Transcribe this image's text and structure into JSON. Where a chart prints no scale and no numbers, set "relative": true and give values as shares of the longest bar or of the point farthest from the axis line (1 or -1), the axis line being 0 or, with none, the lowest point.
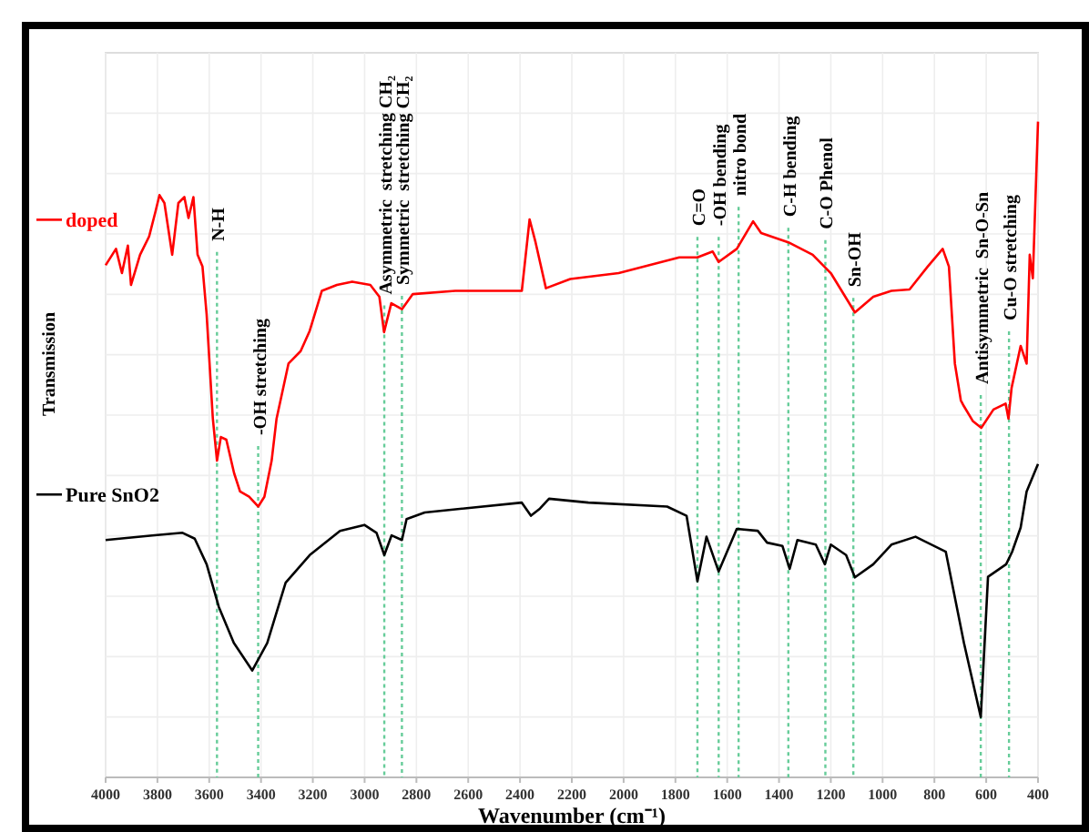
{
  "chart_data": {
    "type": "line",
    "relative": true,
    "xlabel": "Wavenumber (cm⁻¹)",
    "ylabel": "Transmission",
    "xlim": [
      4000,
      400
    ],
    "xticks": [
      4000,
      3800,
      3600,
      3400,
      3200,
      3000,
      2800,
      2600,
      2400,
      2200,
      2000,
      1800,
      1600,
      1400,
      1200,
      1000,
      800,
      600,
      400
    ],
    "tick_labels": "x",
    "grid": true,
    "line_style": "solid",
    "legend": "left",
    "series": [
      {
        "name": "doped",
        "color": "#ff0000",
        "x": [
          4000,
          3960,
          3937,
          3914,
          3902,
          3867,
          3832,
          3808,
          3792,
          3773,
          3743,
          3719,
          3696,
          3680,
          3661,
          3645,
          3626,
          3610,
          3586,
          3570,
          3555,
          3534,
          3504,
          3481,
          3446,
          3411,
          3387,
          3359,
          3340,
          3294,
          3247,
          3212,
          3165,
          3107,
          3048,
          2978,
          2943,
          2925,
          2897,
          2856,
          2814,
          2650,
          2393,
          2363,
          2340,
          2300,
          2206,
          2019,
          1785,
          1715,
          1656,
          1633,
          1563,
          1500,
          1469,
          1364,
          1270,
          1200,
          1107,
          1036,
          966,
          896,
          826,
          768,
          744,
          721,
          698,
          686,
          651,
          619,
          572,
          525,
          514,
          502,
          467,
          444,
          432,
          420,
          400
        ],
        "values": [
          0.781,
          0.806,
          0.769,
          0.811,
          0.751,
          0.797,
          0.825,
          0.862,
          0.888,
          0.876,
          0.797,
          0.876,
          0.885,
          0.853,
          0.885,
          0.797,
          0.779,
          0.706,
          0.547,
          0.483,
          0.519,
          0.515,
          0.464,
          0.436,
          0.428,
          0.413,
          0.428,
          0.483,
          0.547,
          0.631,
          0.65,
          0.681,
          0.742,
          0.751,
          0.756,
          0.751,
          0.733,
          0.679,
          0.723,
          0.714,
          0.737,
          0.742,
          0.742,
          0.851,
          0.816,
          0.746,
          0.76,
          0.769,
          0.793,
          0.793,
          0.802,
          0.786,
          0.806,
          0.848,
          0.83,
          0.816,
          0.797,
          0.769,
          0.709,
          0.733,
          0.742,
          0.744,
          0.779,
          0.806,
          0.779,
          0.631,
          0.575,
          0.566,
          0.543,
          0.533,
          0.561,
          0.57,
          0.547,
          0.594,
          0.658,
          0.631,
          0.797,
          0.761,
          1.0
        ]
      },
      {
        "name": "Pure SnO2",
        "color": "#000000",
        "x": [
          4000,
          3820,
          3703,
          3656,
          3610,
          3563,
          3505,
          3434,
          3376,
          3305,
          3212,
          3095,
          3001,
          2954,
          2924,
          2896,
          2856,
          2838,
          2768,
          2393,
          2358,
          2323,
          2288,
          2136,
          1832,
          1757,
          1715,
          1680,
          1633,
          1563,
          1482,
          1446,
          1387,
          1359,
          1329,
          1258,
          1223,
          1200,
          1141,
          1107,
          1036,
          966,
          873,
          756,
          686,
          621,
          593,
          523,
          500,
          467,
          444,
          400
        ],
        "values": [
          0.362,
          0.369,
          0.373,
          0.364,
          0.325,
          0.26,
          0.205,
          0.163,
          0.205,
          0.297,
          0.339,
          0.376,
          0.385,
          0.373,
          0.339,
          0.369,
          0.362,
          0.394,
          0.404,
          0.419,
          0.399,
          0.41,
          0.425,
          0.419,
          0.413,
          0.399,
          0.299,
          0.367,
          0.314,
          0.379,
          0.376,
          0.358,
          0.353,
          0.318,
          0.362,
          0.355,
          0.325,
          0.355,
          0.339,
          0.305,
          0.325,
          0.355,
          0.367,
          0.344,
          0.205,
          0.092,
          0.306,
          0.325,
          0.344,
          0.381,
          0.436,
          0.478
        ]
      }
    ],
    "ref_lines": [
      {
        "axis": "x",
        "value": 3570,
        "label": "N-H",
        "color": "#66cc99",
        "line_style": "dotted"
      },
      {
        "axis": "x",
        "value": 3411,
        "label": "-OH stretching",
        "color": "#66cc99",
        "line_style": "dotted"
      },
      {
        "axis": "x",
        "value": 2924,
        "label": "Asymmetric  stretching CH₂",
        "color": "#66cc99",
        "line_style": "dotted"
      },
      {
        "axis": "x",
        "value": 2856,
        "label": "Symmetric  stretching CH₂",
        "color": "#66cc99",
        "line_style": "dotted"
      },
      {
        "axis": "x",
        "value": 1715,
        "label": "C=O",
        "color": "#66cc99",
        "line_style": "dotted"
      },
      {
        "axis": "x",
        "value": 1633,
        "label": "-OH bending",
        "color": "#66cc99",
        "line_style": "dotted"
      },
      {
        "axis": "x",
        "value": 1556,
        "label": "nitro bond",
        "color": "#66cc99",
        "line_style": "dotted"
      },
      {
        "axis": "x",
        "value": 1364,
        "label": "C-H bending",
        "color": "#66cc99",
        "line_style": "dotted"
      },
      {
        "axis": "x",
        "value": 1221,
        "label": "C-O Phenol",
        "color": "#66cc99",
        "line_style": "dotted"
      },
      {
        "axis": "x",
        "value": 1113,
        "label": "Sn-OH",
        "color": "#66cc99",
        "line_style": "dotted"
      },
      {
        "axis": "x",
        "value": 621,
        "label": "Antisymmetric  Sn-O-Sn",
        "color": "#66cc99",
        "line_style": "dotted"
      },
      {
        "axis": "x",
        "value": 512,
        "label": "Cu-O stretching",
        "color": "#66cc99",
        "line_style": "dotted"
      }
    ]
  }
}
